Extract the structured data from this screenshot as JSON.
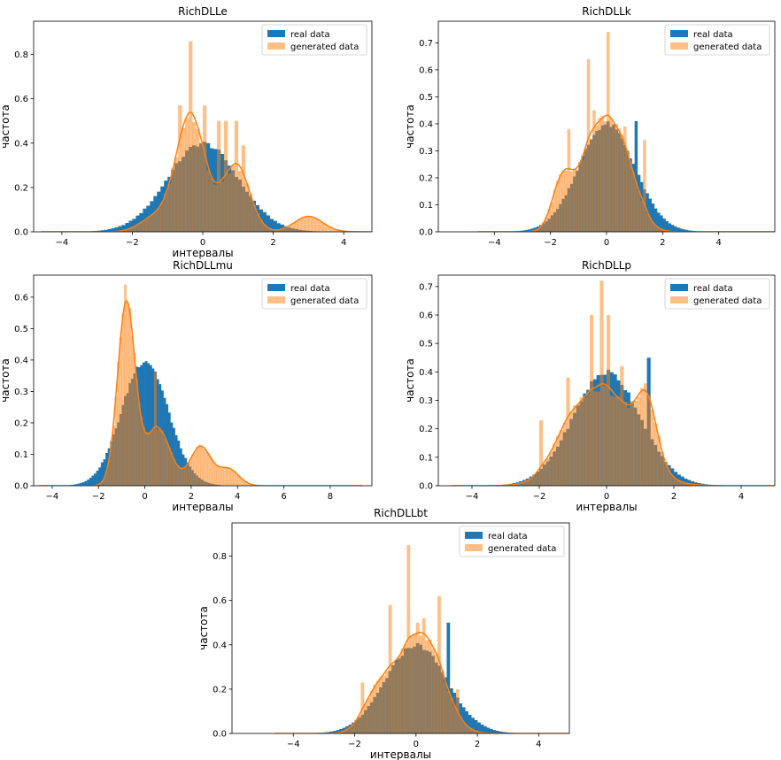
{
  "colors": {
    "real": "#1f77b4",
    "generated": "#ff7f0e",
    "generated_alpha": 0.5,
    "overlap": "#8f7b62"
  },
  "chart_data": [
    {
      "type": "bar",
      "title": "RichDLLe",
      "xlabel": "интервалы",
      "ylabel": "частота",
      "xlim": [
        -4.8,
        4.8
      ],
      "ylim": [
        0,
        0.95
      ],
      "xticks": [
        -4,
        -2,
        0,
        2,
        4
      ],
      "yticks": [
        0.0,
        0.2,
        0.4,
        0.6,
        0.8
      ],
      "grid": false,
      "legend_position": "top-right",
      "series": [
        {
          "name": "real data",
          "kind": "histogram",
          "mix": [
            [
              1.0,
              0.0,
              1.0
            ]
          ]
        },
        {
          "name": "generated data",
          "kind": "histogram+kde",
          "mix": [
            [
              0.55,
              -0.35,
              0.42
            ],
            [
              0.28,
              0.95,
              0.38
            ],
            [
              0.07,
              3.0,
              0.4
            ],
            [
              0.06,
              -1.4,
              0.4
            ]
          ],
          "spikes": [
            [
              -0.65,
              0.57
            ],
            [
              -0.35,
              0.86
            ],
            [
              0.05,
              0.57
            ],
            [
              0.45,
              0.5
            ],
            [
              0.95,
              0.5
            ],
            [
              0.65,
              0.5
            ],
            [
              1.15,
              0.39
            ]
          ]
        }
      ]
    },
    {
      "type": "bar",
      "title": "RichDLLk",
      "xlabel": "",
      "ylabel": "частота",
      "xlim": [
        -6,
        6
      ],
      "ylim": [
        0,
        0.78
      ],
      "xticks": [
        -4,
        -2,
        0,
        2,
        4
      ],
      "yticks": [
        0.0,
        0.1,
        0.2,
        0.3,
        0.4,
        0.5,
        0.6,
        0.7
      ],
      "grid": false,
      "legend_position": "top-right",
      "series": [
        {
          "name": "real data",
          "kind": "histogram",
          "mix": [
            [
              1.0,
              0.0,
              1.0
            ]
          ],
          "spikes": [
            [
              1.05,
              0.41
            ]
          ]
        },
        {
          "name": "generated data",
          "kind": "histogram+kde",
          "mix": [
            [
              0.5,
              -0.4,
              0.6
            ],
            [
              0.35,
              0.55,
              0.55
            ],
            [
              0.15,
              -1.6,
              0.35
            ]
          ],
          "spikes": [
            [
              -1.35,
              0.38
            ],
            [
              -0.65,
              0.64
            ],
            [
              -0.45,
              0.45
            ],
            [
              0.05,
              0.74
            ],
            [
              0.65,
              0.39
            ],
            [
              1.35,
              0.34
            ]
          ]
        }
      ]
    },
    {
      "type": "bar",
      "title": "RichDLLmu",
      "xlabel": "интервалы",
      "ylabel": "частота",
      "xlim": [
        -4.8,
        9.8
      ],
      "ylim": [
        0,
        0.67
      ],
      "xticks": [
        -4,
        -2,
        0,
        2,
        4,
        6,
        8
      ],
      "yticks": [
        0.0,
        0.1,
        0.2,
        0.3,
        0.4,
        0.5,
        0.6
      ],
      "grid": false,
      "legend_position": "top-right",
      "series": [
        {
          "name": "real data",
          "kind": "histogram",
          "mix": [
            [
              1.0,
              0.0,
              1.0
            ]
          ]
        },
        {
          "name": "generated data",
          "kind": "histogram+kde",
          "mix": [
            [
              0.55,
              -0.8,
              0.38
            ],
            [
              0.25,
              0.55,
              0.55
            ],
            [
              0.14,
              2.4,
              0.45
            ],
            [
              0.06,
              3.6,
              0.45
            ]
          ],
          "spikes": [
            [
              -0.85,
              0.64
            ],
            [
              -1.35,
              0.19
            ],
            [
              0.45,
              0.36
            ]
          ]
        }
      ]
    },
    {
      "type": "bar",
      "title": "RichDLLp",
      "xlabel": "интервалы",
      "ylabel": "частота",
      "xlim": [
        -5.0,
        5.0
      ],
      "ylim": [
        0,
        0.74
      ],
      "xticks": [
        -4,
        -2,
        0,
        2,
        4
      ],
      "yticks": [
        0.0,
        0.1,
        0.2,
        0.3,
        0.4,
        0.5,
        0.6,
        0.7
      ],
      "grid": false,
      "legend_position": "top-right",
      "series": [
        {
          "name": "real data",
          "kind": "histogram",
          "mix": [
            [
              1.0,
              0.0,
              1.0
            ]
          ],
          "spikes": [
            [
              1.25,
              0.45
            ]
          ]
        },
        {
          "name": "generated data",
          "kind": "histogram+kde",
          "mix": [
            [
              0.75,
              -0.05,
              0.9
            ],
            [
              0.15,
              1.2,
              0.3
            ],
            [
              0.1,
              -1.2,
              0.5
            ]
          ],
          "spikes": [
            [
              -1.95,
              0.23
            ],
            [
              -1.15,
              0.38
            ],
            [
              -0.45,
              0.6
            ],
            [
              -0.15,
              0.72
            ],
            [
              0.05,
              0.6
            ],
            [
              0.45,
              0.42
            ],
            [
              1.15,
              0.36
            ]
          ]
        }
      ]
    },
    {
      "type": "bar",
      "title": "RichDLLbt",
      "xlabel": "интервалы",
      "ylabel": "частота",
      "xlim": [
        -6,
        5
      ],
      "ylim": [
        0,
        0.95
      ],
      "xticks": [
        -4,
        -2,
        0,
        2,
        4
      ],
      "yticks": [
        0.0,
        0.2,
        0.4,
        0.6,
        0.8
      ],
      "grid": false,
      "legend_position": "top-right",
      "series": [
        {
          "name": "real data",
          "kind": "histogram",
          "mix": [
            [
              1.0,
              0.0,
              1.0
            ]
          ],
          "spikes": [
            [
              1.05,
              0.5
            ]
          ]
        },
        {
          "name": "generated data",
          "kind": "histogram+kde",
          "mix": [
            [
              0.6,
              -0.15,
              0.7
            ],
            [
              0.25,
              0.55,
              0.55
            ],
            [
              0.15,
              -1.3,
              0.45
            ]
          ],
          "spikes": [
            [
              -1.75,
              0.23
            ],
            [
              -0.85,
              0.58
            ],
            [
              -0.25,
              0.85
            ],
            [
              0.05,
              0.5
            ],
            [
              0.25,
              0.52
            ],
            [
              0.75,
              0.62
            ],
            [
              1.35,
              0.2
            ]
          ]
        }
      ]
    }
  ]
}
